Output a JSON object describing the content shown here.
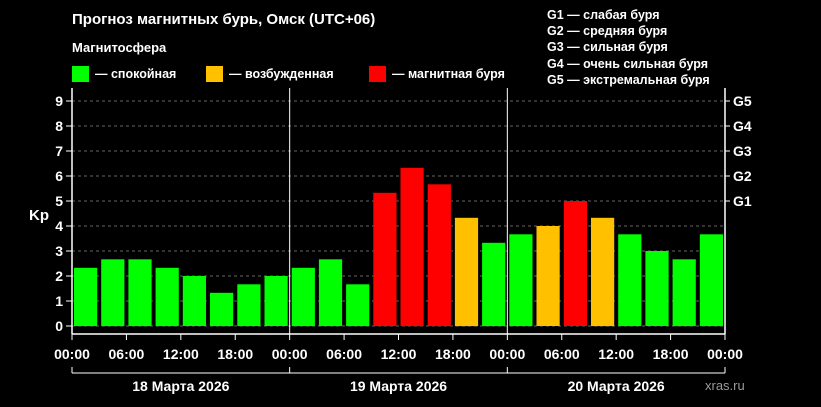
{
  "title": "Прогноз магнитных бурь, Омск (UTC+06)",
  "subtitle": "Магнитосфера",
  "legend": [
    {
      "label": "— спокойная",
      "color": "#00ff00"
    },
    {
      "label": "— возбужденная",
      "color": "#ffc000"
    },
    {
      "label": "— магнитная буря",
      "color": "#ff0000"
    }
  ],
  "g_scale": [
    "G1 — слабая буря",
    "G2 — средняя буря",
    "G3 — сильная буря",
    "G4 — очень сильная буря",
    "G5 — экстремальная буря"
  ],
  "watermark": "xras.ru",
  "chart_data": {
    "type": "bar",
    "ylabel": "Kp",
    "ylim": [
      0,
      9
    ],
    "y_ticks": [
      "0",
      "1",
      "2",
      "3",
      "4",
      "5",
      "6",
      "7",
      "8",
      "9"
    ],
    "right_ticks": [
      {
        "label": "G1",
        "value": 5
      },
      {
        "label": "G2",
        "value": 6
      },
      {
        "label": "G3",
        "value": 7
      },
      {
        "label": "G4",
        "value": 8
      },
      {
        "label": "G5",
        "value": 9
      }
    ],
    "x_tick_labels": [
      "00:00",
      "06:00",
      "12:00",
      "18:00",
      "00:00",
      "06:00",
      "12:00",
      "18:00",
      "00:00",
      "06:00",
      "12:00",
      "18:00",
      "00:00"
    ],
    "days": [
      "18 Марта 2026",
      "19 Марта 2026",
      "20 Марта 2026"
    ],
    "values": [
      2.33,
      2.67,
      2.67,
      2.33,
      2.0,
      1.33,
      1.67,
      2.0,
      2.33,
      2.67,
      1.67,
      5.33,
      6.33,
      5.67,
      4.33,
      3.33,
      3.67,
      4.0,
      5.0,
      4.33,
      3.67,
      3.0,
      2.67,
      3.67
    ],
    "colors": [
      "#00ff00",
      "#00ff00",
      "#00ff00",
      "#00ff00",
      "#00ff00",
      "#00ff00",
      "#00ff00",
      "#00ff00",
      "#00ff00",
      "#00ff00",
      "#00ff00",
      "#ff0000",
      "#ff0000",
      "#ff0000",
      "#ffc000",
      "#00ff00",
      "#00ff00",
      "#ffc000",
      "#ff0000",
      "#ffc000",
      "#00ff00",
      "#00ff00",
      "#00ff00",
      "#00ff00"
    ],
    "grid": true
  }
}
